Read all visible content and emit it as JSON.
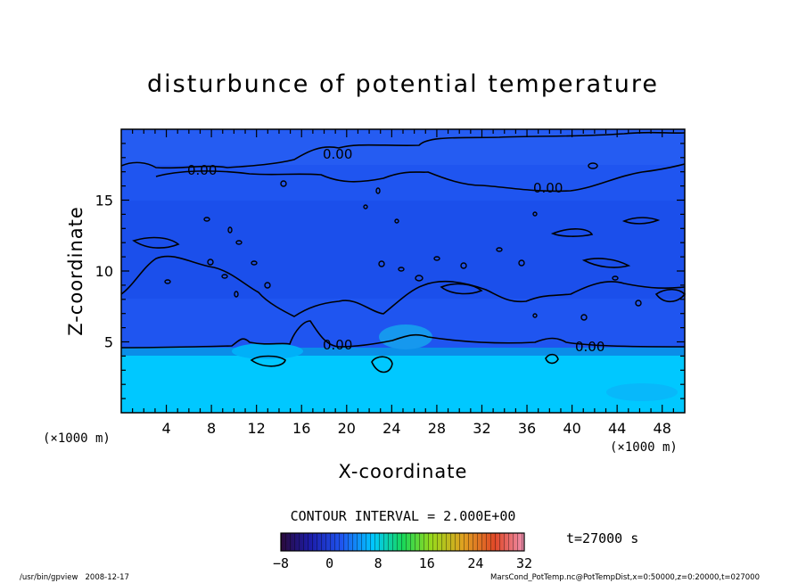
{
  "chart_data": {
    "type": "heatmap",
    "title": "disturbunce of potential temperature",
    "xlabel": "X-coordinate",
    "ylabel": "Z-coordinate",
    "x_unit_left": "(×1000 m)",
    "x_unit_right": "(×1000 m)",
    "xlim": [
      0,
      50
    ],
    "ylim": [
      0,
      20
    ],
    "x_ticks": [
      4,
      8,
      12,
      16,
      20,
      24,
      28,
      32,
      36,
      40,
      44,
      48
    ],
    "y_ticks": [
      5,
      10,
      15
    ],
    "contour_interval_text": "CONTOUR INTERVAL = 2.000E+00",
    "time_text": "t=27000 s",
    "colorbar": {
      "min": -8,
      "max": 32,
      "tick_labels": [
        "−8",
        "0",
        "8",
        "16",
        "24",
        "32"
      ],
      "tick_values": [
        -8,
        0,
        8,
        16,
        24,
        32
      ]
    },
    "contour_labels": [
      {
        "text": "0.00",
        "x": 19.5,
        "z": 18.1
      },
      {
        "text": "0.00",
        "x": 7.5,
        "z": 17.4
      },
      {
        "text": "0.00",
        "x": 37.5,
        "z": 15.8
      },
      {
        "text": "0.00",
        "x": 19.5,
        "z": 4.6
      },
      {
        "text": "0.00",
        "x": 40.5,
        "z": 4.5
      }
    ],
    "regions": [
      {
        "name": "upper layer",
        "z_range": [
          4.5,
          20
        ],
        "approx_value": 0
      },
      {
        "name": "lower layer",
        "z_range": [
          0,
          4.5
        ],
        "approx_value": 4
      }
    ],
    "colors": {
      "field_upper": "#1f55f0",
      "field_band": "#1a4ee6",
      "field_lower": "#00c8ff",
      "frame": "#000000"
    }
  },
  "footer": {
    "left": "/usr/bin/gpview   2008-12-17",
    "right": "MarsCond_PotTemp.nc@PotTempDist,x=0:50000,z=0:20000,t=027000"
  }
}
